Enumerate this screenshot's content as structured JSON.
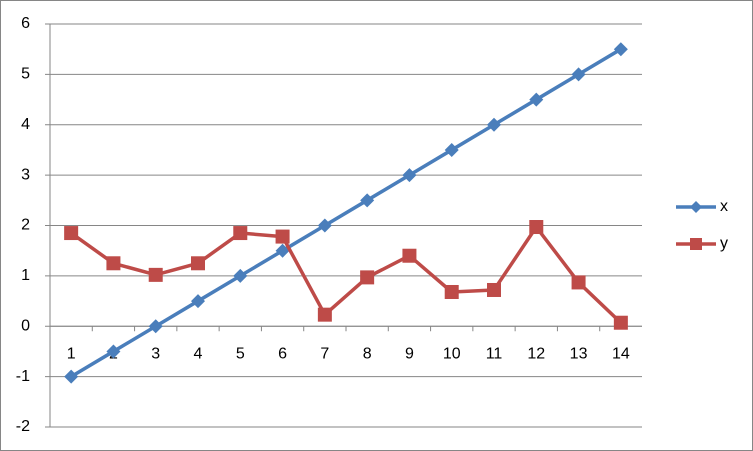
{
  "chart_data": {
    "type": "line",
    "categories": [
      "1",
      "2",
      "3",
      "4",
      "5",
      "6",
      "7",
      "8",
      "9",
      "10",
      "11",
      "12",
      "13",
      "14"
    ],
    "series": [
      {
        "name": "x",
        "color": "#4a7ebb",
        "marker": "diamond",
        "values": [
          -1,
          -0.5,
          0,
          0.5,
          1,
          1.5,
          2,
          2.5,
          3,
          3.5,
          4,
          4.5,
          5,
          5.5
        ]
      },
      {
        "name": "y",
        "color": "#be4b48",
        "marker": "square",
        "values": [
          1.85,
          1.25,
          1.02,
          1.25,
          1.85,
          1.78,
          0.23,
          0.97,
          1.4,
          0.68,
          0.72,
          1.97,
          0.87,
          0.07
        ]
      }
    ],
    "ylim": [
      -2,
      6
    ],
    "yticks": [
      -2,
      -1,
      0,
      1,
      2,
      3,
      4,
      5,
      6
    ],
    "grid": true,
    "legend": "right"
  }
}
